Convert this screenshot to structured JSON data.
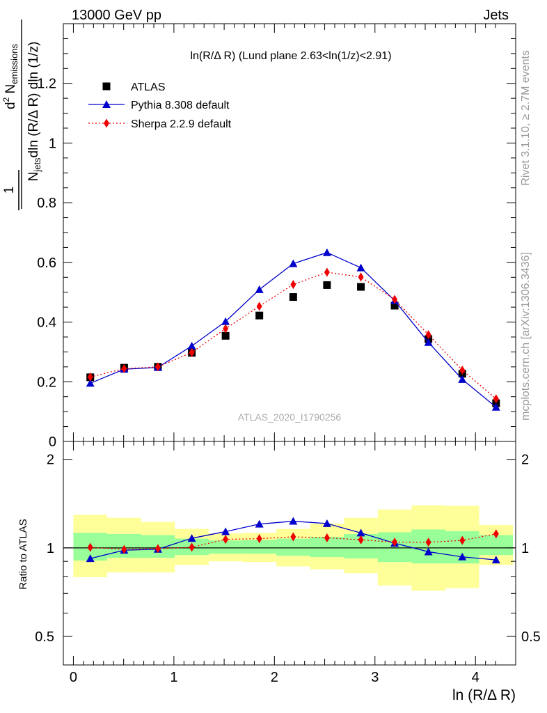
{
  "header": {
    "left": "13000 GeV pp",
    "right": "Jets"
  },
  "side_labels": {
    "rivet": "Rivet 3.1.10, ≥ 2.7M events",
    "mcplots": "mcplots.cern.ch [arXiv:1306.3436]"
  },
  "watermark": "ATLAS_2020_I1790256",
  "colors": {
    "atlas": "#000000",
    "pythia": "#0000cc",
    "sherpa": "#ee0000",
    "band_inner": "#99ff99",
    "band_outer": "#ffff99"
  },
  "chart_data": [
    {
      "type": "scatter",
      "title": "ln(R/Δ R) (Lund plane 2.63<ln(1/z)<2.91)",
      "ylabel": "1/N_jets d²N_emissions / dln(R/Δ R) dln(1/z)",
      "xlim": [
        -0.1,
        4.4
      ],
      "ylim": [
        0,
        1.4
      ],
      "yticks": [
        0,
        0.2,
        0.4,
        0.6,
        0.8,
        1,
        1.2
      ],
      "ytick_labels": [
        "0",
        "0.2",
        "0.4",
        "0.6",
        "0.8",
        "1",
        "1.2"
      ],
      "legend_position": "top-left",
      "x": [
        0.168,
        0.505,
        0.841,
        1.178,
        1.514,
        1.85,
        2.187,
        2.523,
        2.86,
        3.196,
        3.532,
        3.869,
        4.205
      ],
      "series": [
        {
          "name": "ATLAS",
          "marker": "square",
          "values": [
            0.215,
            0.247,
            0.25,
            0.297,
            0.354,
            0.422,
            0.484,
            0.524,
            0.518,
            0.455,
            0.343,
            0.227,
            0.128
          ]
        },
        {
          "name": "Pythia 8.308 default",
          "marker": "triangle",
          "line": "solid",
          "values": [
            0.195,
            0.242,
            0.248,
            0.32,
            0.402,
            0.509,
            0.596,
            0.633,
            0.582,
            0.472,
            0.332,
            0.208,
            0.115
          ]
        },
        {
          "name": "Sherpa 2.2.9 default",
          "marker": "diamond",
          "line": "dotted",
          "values": [
            0.216,
            0.244,
            0.25,
            0.298,
            0.378,
            0.453,
            0.526,
            0.567,
            0.551,
            0.476,
            0.358,
            0.239,
            0.143
          ]
        }
      ]
    },
    {
      "type": "line",
      "xlabel": "ln (R/Δ R)",
      "ylabel": "Ratio to ATLAS",
      "xlim": [
        -0.1,
        4.4
      ],
      "ylim": [
        0.4,
        2.3
      ],
      "ylog": true,
      "xticks": [
        0,
        1,
        2,
        3,
        4
      ],
      "xtick_labels": [
        "0",
        "1",
        "2",
        "3",
        "4"
      ],
      "yticks": [
        0.5,
        1,
        2
      ],
      "ytick_labels": [
        "0.5",
        "1",
        "2"
      ],
      "x": [
        0.168,
        0.505,
        0.841,
        1.178,
        1.514,
        1.85,
        2.187,
        2.523,
        2.86,
        3.196,
        3.532,
        3.869,
        4.205
      ],
      "bin_edges": [
        0.0,
        0.336,
        0.673,
        1.009,
        1.346,
        1.682,
        2.019,
        2.355,
        2.692,
        3.028,
        3.364,
        3.701,
        4.037,
        4.373
      ],
      "band_inner": {
        "low": [
          0.905,
          0.925,
          0.925,
          0.945,
          0.955,
          0.955,
          0.94,
          0.93,
          0.92,
          0.895,
          0.885,
          0.885,
          0.945
        ],
        "high": [
          1.125,
          1.115,
          1.105,
          1.075,
          1.06,
          1.065,
          1.075,
          1.09,
          1.115,
          1.13,
          1.155,
          1.14,
          1.105
        ]
      },
      "band_outer": {
        "low": [
          0.795,
          0.825,
          0.825,
          0.875,
          0.9,
          0.895,
          0.865,
          0.845,
          0.82,
          0.745,
          0.715,
          0.73,
          0.875
        ],
        "high": [
          1.295,
          1.265,
          1.225,
          1.16,
          1.12,
          1.125,
          1.16,
          1.21,
          1.265,
          1.35,
          1.395,
          1.39,
          1.195
        ]
      },
      "series": [
        {
          "name": "Pythia 8.308 default",
          "marker": "triangle",
          "line": "solid",
          "values": [
            0.92,
            0.982,
            0.99,
            1.078,
            1.136,
            1.205,
            1.232,
            1.21,
            1.124,
            1.037,
            0.97,
            0.932,
            0.91
          ]
        },
        {
          "name": "Sherpa 2.2.9 default",
          "marker": "diamond",
          "line": "dotted",
          "values": [
            1.004,
            0.988,
            0.994,
            1.005,
            1.069,
            1.075,
            1.09,
            1.082,
            1.065,
            1.046,
            1.045,
            1.06,
            1.116
          ]
        }
      ]
    }
  ]
}
